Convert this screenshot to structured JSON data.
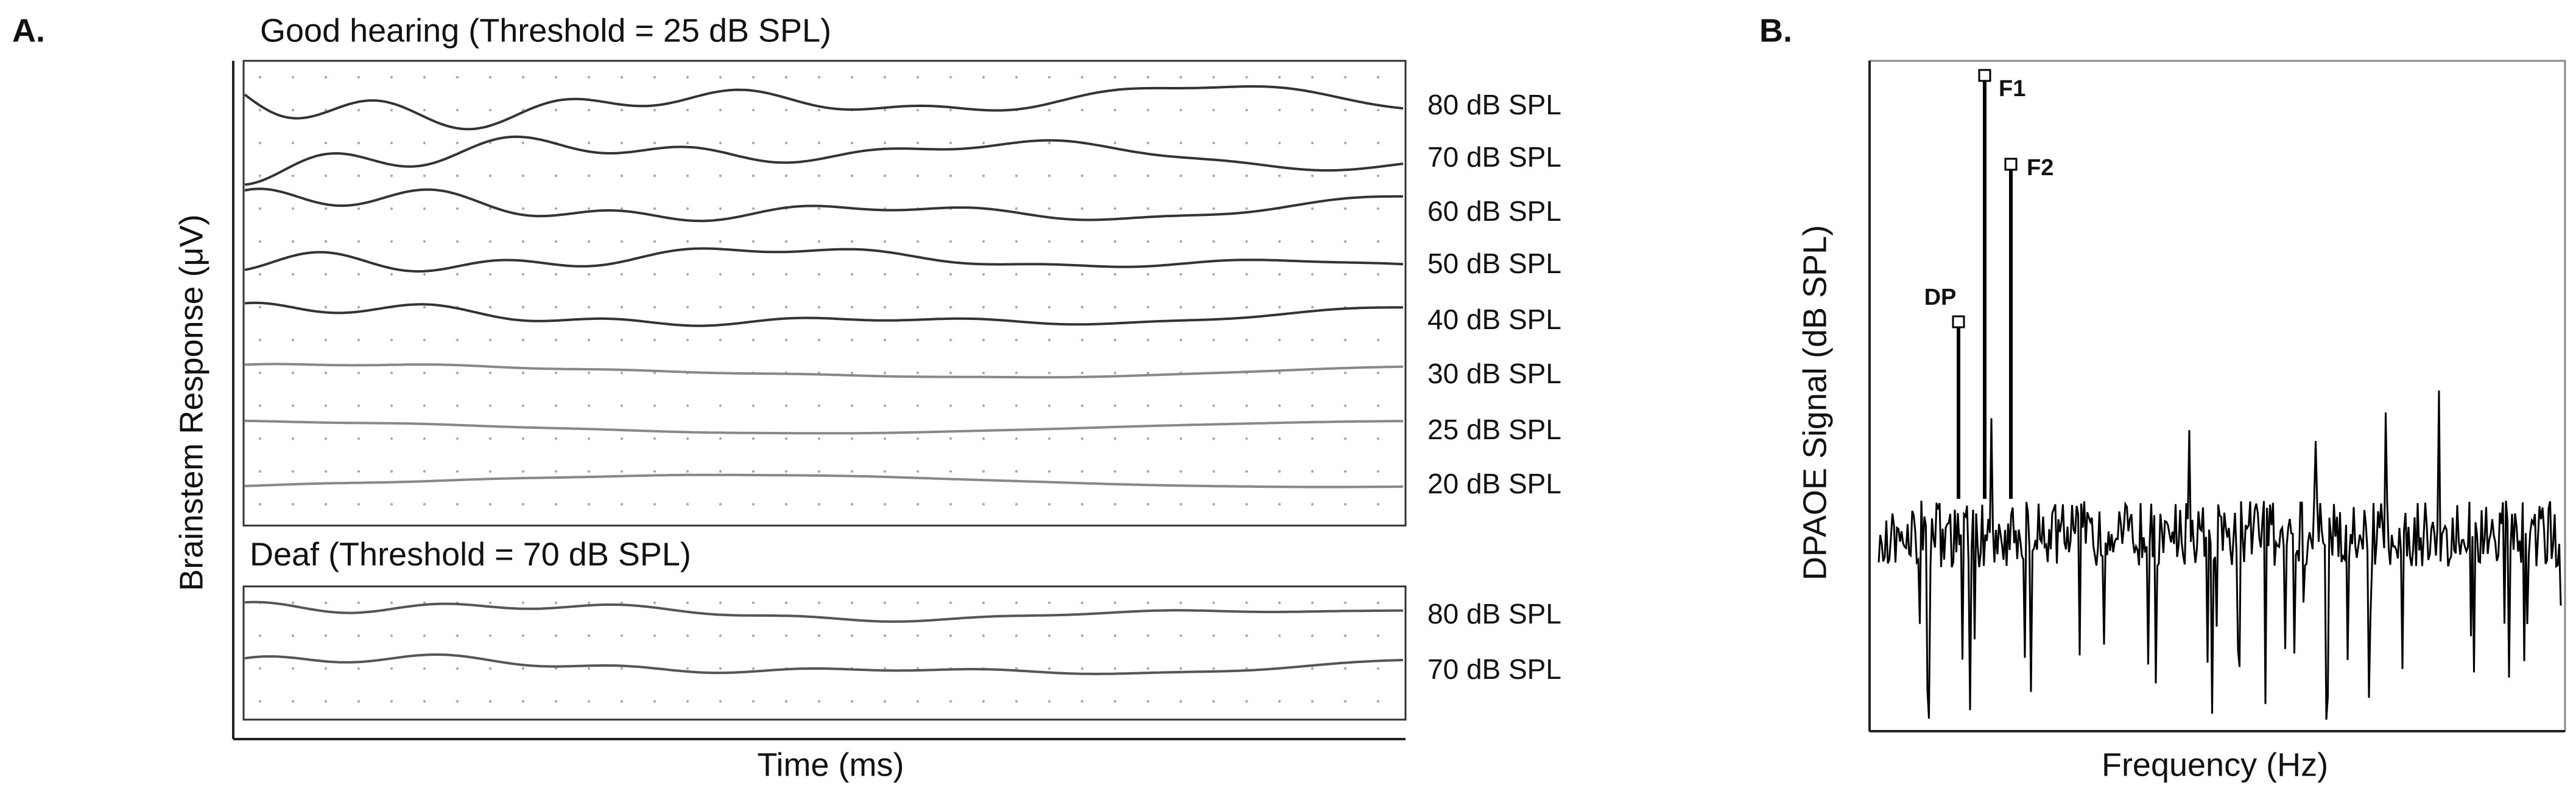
{
  "panel_a": {
    "label": "A.",
    "y_axis_label": "Brainstem Response (μV)",
    "x_axis_label": "Time (ms)",
    "groups": [
      {
        "title": "Good hearing (Threshold = 25 dB SPL)",
        "traces": [
          "80 dB SPL",
          "70 dB SPL",
          "60 dB SPL",
          "50 dB SPL",
          "40 dB SPL",
          "30 dB SPL",
          "25 dB SPL",
          "20 dB SPL"
        ]
      },
      {
        "title": "Deaf (Threshold = 70 dB SPL)",
        "traces": [
          "80 dB SPL",
          "70 dB SPL"
        ]
      }
    ]
  },
  "panel_b": {
    "label": "B.",
    "y_axis_label": "DPAOE Signal  (dB SPL)",
    "x_axis_label": "Frequency (Hz)",
    "peaks": [
      "DP",
      "F1",
      "F2"
    ]
  }
}
